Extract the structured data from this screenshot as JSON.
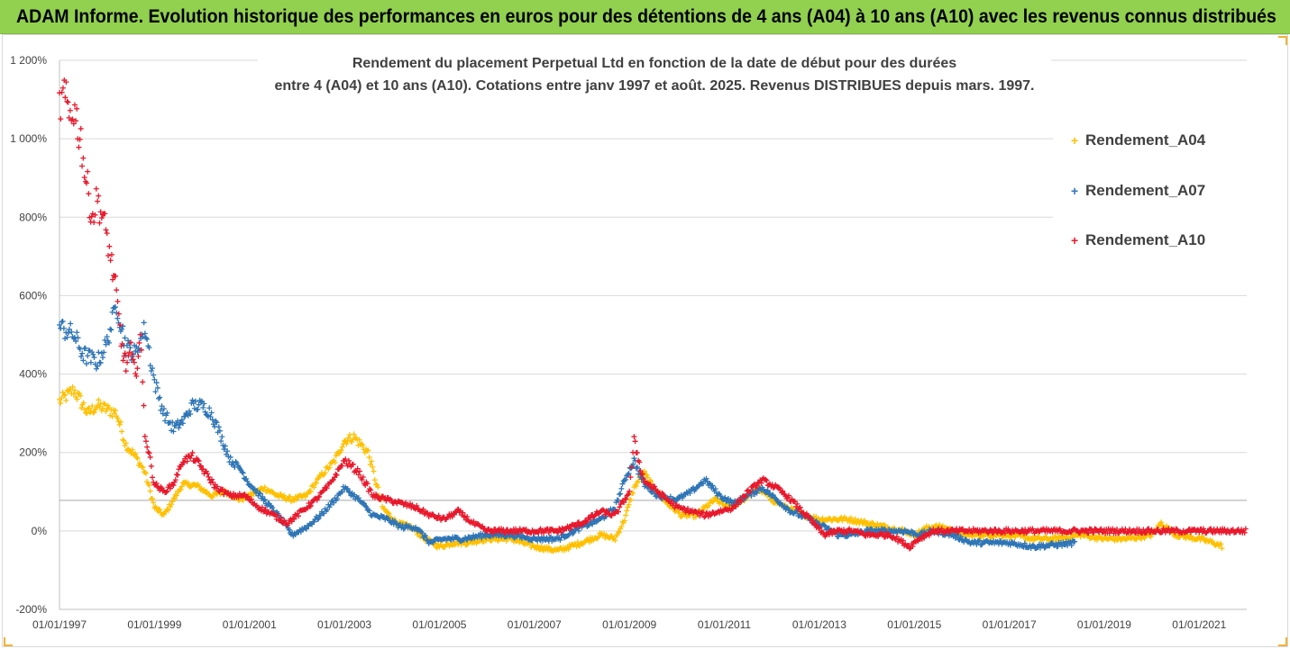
{
  "banner": {
    "title": "ADAM Informe. Evolution historique des performances en euros pour des détentions de 4 ans (A04) à 10 ans (A10) avec les revenus connus distribués"
  },
  "chart_data": {
    "type": "scatter",
    "title_line1": "Rendement du placement Perpetual Ltd en fonction de la date de début pour des durées",
    "title_line2": "entre 4 (A04) et 10 ans (A10). Cotations entre janv 1997 et août. 2025. Revenus DISTRIBUES depuis mars. 1997.",
    "ylim": [
      -200,
      1200
    ],
    "xlim": [
      1997.0,
      2022.0
    ],
    "y_ticks": [
      "1 200%",
      "1 000%",
      "800%",
      "600%",
      "400%",
      "200%",
      "0%",
      "-200%"
    ],
    "x_ticks": [
      "01/01/1997",
      "01/01/1999",
      "01/01/2001",
      "01/01/2003",
      "01/01/2005",
      "01/01/2007",
      "01/01/2009",
      "01/01/2011",
      "01/01/2013",
      "01/01/2015",
      "01/01/2017",
      "01/01/2019",
      "01/01/2021"
    ],
    "reference_line": 78,
    "grid": true,
    "legend_position": "right",
    "series": [
      {
        "name": "Rendement_A04",
        "color": "#ffc000",
        "points": [
          [
            1997.0,
            330
          ],
          [
            1997.3,
            360
          ],
          [
            1997.6,
            300
          ],
          [
            1997.8,
            320
          ],
          [
            1998.0,
            310
          ],
          [
            1998.2,
            300
          ],
          [
            1998.4,
            220
          ],
          [
            1998.6,
            190
          ],
          [
            1998.8,
            150
          ],
          [
            1999.0,
            60
          ],
          [
            1999.2,
            40
          ],
          [
            1999.4,
            80
          ],
          [
            1999.6,
            120
          ],
          [
            1999.9,
            115
          ],
          [
            2000.2,
            90
          ],
          [
            2000.5,
            100
          ],
          [
            2000.8,
            80
          ],
          [
            2001.0,
            90
          ],
          [
            2001.3,
            110
          ],
          [
            2001.6,
            90
          ],
          [
            2001.9,
            80
          ],
          [
            2002.2,
            90
          ],
          [
            2002.5,
            140
          ],
          [
            2002.8,
            180
          ],
          [
            2003.0,
            230
          ],
          [
            2003.2,
            240
          ],
          [
            2003.5,
            200
          ],
          [
            2003.8,
            60
          ],
          [
            2004.1,
            20
          ],
          [
            2004.4,
            10
          ],
          [
            2004.7,
            -20
          ],
          [
            2005.0,
            -40
          ],
          [
            2005.3,
            -30
          ],
          [
            2005.6,
            -30
          ],
          [
            2006.0,
            -20
          ],
          [
            2006.5,
            -20
          ],
          [
            2007.0,
            -40
          ],
          [
            2007.5,
            -50
          ],
          [
            2008.0,
            -30
          ],
          [
            2008.4,
            -10
          ],
          [
            2008.7,
            -20
          ],
          [
            2008.9,
            30
          ],
          [
            2009.1,
            110
          ],
          [
            2009.3,
            150
          ],
          [
            2009.5,
            110
          ],
          [
            2009.8,
            70
          ],
          [
            2010.1,
            40
          ],
          [
            2010.4,
            40
          ],
          [
            2010.8,
            80
          ],
          [
            2011.1,
            60
          ],
          [
            2011.4,
            80
          ],
          [
            2011.7,
            110
          ],
          [
            2012.0,
            80
          ],
          [
            2012.3,
            60
          ],
          [
            2012.7,
            40
          ],
          [
            2013.0,
            30
          ],
          [
            2013.3,
            30
          ],
          [
            2013.6,
            30
          ],
          [
            2014.0,
            20
          ],
          [
            2014.4,
            10
          ],
          [
            2014.8,
            0
          ],
          [
            2015.0,
            -10
          ],
          [
            2015.3,
            10
          ],
          [
            2015.6,
            10
          ],
          [
            2016.0,
            -10
          ],
          [
            2016.5,
            -10
          ],
          [
            2017.0,
            -10
          ],
          [
            2017.5,
            -20
          ],
          [
            2018.0,
            -20
          ],
          [
            2018.5,
            -10
          ],
          [
            2019.0,
            -20
          ],
          [
            2019.5,
            -20
          ],
          [
            2020.0,
            -10
          ],
          [
            2020.2,
            20
          ],
          [
            2020.5,
            -10
          ],
          [
            2021.0,
            -20
          ],
          [
            2021.3,
            -30
          ],
          [
            2021.5,
            -40
          ]
        ]
      },
      {
        "name": "Rendement_A07",
        "color": "#2e75b6",
        "points": [
          [
            1997.0,
            520
          ],
          [
            1997.3,
            500
          ],
          [
            1997.5,
            450
          ],
          [
            1997.8,
            430
          ],
          [
            1998.0,
            480
          ],
          [
            1998.2,
            580
          ],
          [
            1998.4,
            470
          ],
          [
            1998.6,
            450
          ],
          [
            1998.8,
            520
          ],
          [
            1999.0,
            380
          ],
          [
            1999.2,
            300
          ],
          [
            1999.4,
            260
          ],
          [
            1999.6,
            280
          ],
          [
            1999.8,
            320
          ],
          [
            2000.0,
            320
          ],
          [
            2000.2,
            300
          ],
          [
            2000.4,
            240
          ],
          [
            2000.6,
            180
          ],
          [
            2000.8,
            160
          ],
          [
            2001.0,
            120
          ],
          [
            2001.3,
            80
          ],
          [
            2001.6,
            40
          ],
          [
            2001.9,
            -10
          ],
          [
            2002.2,
            10
          ],
          [
            2002.5,
            40
          ],
          [
            2002.8,
            80
          ],
          [
            2003.0,
            110
          ],
          [
            2003.3,
            80
          ],
          [
            2003.6,
            40
          ],
          [
            2003.9,
            30
          ],
          [
            2004.2,
            10
          ],
          [
            2004.5,
            10
          ],
          [
            2004.8,
            -30
          ],
          [
            2005.1,
            -20
          ],
          [
            2005.5,
            -20
          ],
          [
            2006.0,
            -10
          ],
          [
            2006.5,
            -10
          ],
          [
            2007.0,
            -20
          ],
          [
            2007.5,
            -20
          ],
          [
            2008.0,
            10
          ],
          [
            2008.4,
            30
          ],
          [
            2008.7,
            60
          ],
          [
            2008.9,
            130
          ],
          [
            2009.1,
            180
          ],
          [
            2009.3,
            120
          ],
          [
            2009.6,
            90
          ],
          [
            2010.0,
            80
          ],
          [
            2010.3,
            100
          ],
          [
            2010.6,
            130
          ],
          [
            2010.9,
            90
          ],
          [
            2011.2,
            70
          ],
          [
            2011.5,
            90
          ],
          [
            2011.8,
            110
          ],
          [
            2012.1,
            80
          ],
          [
            2012.4,
            50
          ],
          [
            2012.8,
            30
          ],
          [
            2013.1,
            10
          ],
          [
            2013.4,
            -10
          ],
          [
            2013.7,
            -10
          ],
          [
            2014.0,
            0
          ],
          [
            2014.4,
            0
          ],
          [
            2014.8,
            0
          ],
          [
            2015.1,
            -10
          ],
          [
            2015.4,
            0
          ],
          [
            2015.8,
            -10
          ],
          [
            2016.2,
            -30
          ],
          [
            2016.6,
            -30
          ],
          [
            2017.0,
            -30
          ],
          [
            2017.5,
            -40
          ],
          [
            2018.0,
            -35
          ],
          [
            2018.4,
            -30
          ]
        ]
      },
      {
        "name": "Rendement_A10",
        "color": "#e8192c",
        "points": [
          [
            1997.0,
            1080
          ],
          [
            1997.1,
            1110
          ],
          [
            1997.2,
            1060
          ],
          [
            1997.3,
            1080
          ],
          [
            1997.45,
            1000
          ],
          [
            1997.55,
            900
          ],
          [
            1997.7,
            800
          ],
          [
            1997.8,
            850
          ],
          [
            1998.0,
            750
          ],
          [
            1998.1,
            680
          ],
          [
            1998.2,
            600
          ],
          [
            1998.3,
            480
          ],
          [
            1998.4,
            420
          ],
          [
            1998.5,
            460
          ],
          [
            1998.6,
            390
          ],
          [
            1998.7,
            500
          ],
          [
            1998.8,
            250
          ],
          [
            1999.0,
            120
          ],
          [
            1999.2,
            100
          ],
          [
            1999.4,
            120
          ],
          [
            1999.6,
            180
          ],
          [
            1999.8,
            190
          ],
          [
            2000.0,
            160
          ],
          [
            2000.3,
            110
          ],
          [
            2000.6,
            90
          ],
          [
            2000.9,
            90
          ],
          [
            2001.2,
            60
          ],
          [
            2001.5,
            40
          ],
          [
            2001.8,
            20
          ],
          [
            2002.1,
            50
          ],
          [
            2002.4,
            80
          ],
          [
            2002.7,
            120
          ],
          [
            2003.0,
            180
          ],
          [
            2003.3,
            150
          ],
          [
            2003.6,
            90
          ],
          [
            2003.9,
            80
          ],
          [
            2004.2,
            70
          ],
          [
            2004.5,
            60
          ],
          [
            2004.8,
            40
          ],
          [
            2005.1,
            30
          ],
          [
            2005.4,
            50
          ],
          [
            2005.7,
            20
          ],
          [
            2006.0,
            0
          ],
          [
            2006.5,
            0
          ],
          [
            2007.0,
            0
          ],
          [
            2007.5,
            0
          ],
          [
            2008.0,
            20
          ],
          [
            2008.4,
            50
          ],
          [
            2008.7,
            40
          ],
          [
            2009.0,
            100
          ],
          [
            2009.1,
            230
          ],
          [
            2009.3,
            130
          ],
          [
            2009.6,
            100
          ],
          [
            2010.0,
            60
          ],
          [
            2010.3,
            50
          ],
          [
            2010.6,
            40
          ],
          [
            2010.9,
            50
          ],
          [
            2011.2,
            60
          ],
          [
            2011.5,
            100
          ],
          [
            2011.8,
            130
          ],
          [
            2012.1,
            110
          ],
          [
            2012.4,
            80
          ],
          [
            2012.8,
            30
          ],
          [
            2013.1,
            -10
          ],
          [
            2013.4,
            0
          ],
          [
            2013.7,
            0
          ],
          [
            2014.0,
            -10
          ],
          [
            2014.5,
            -10
          ],
          [
            2014.9,
            -40
          ],
          [
            2015.1,
            -20
          ],
          [
            2015.4,
            0
          ],
          [
            2016.0,
            0
          ],
          [
            2017.0,
            0
          ],
          [
            2018.0,
            0
          ],
          [
            2019.0,
            0
          ],
          [
            2020.0,
            0
          ],
          [
            2021.0,
            0
          ],
          [
            2022.0,
            0
          ]
        ]
      }
    ]
  }
}
